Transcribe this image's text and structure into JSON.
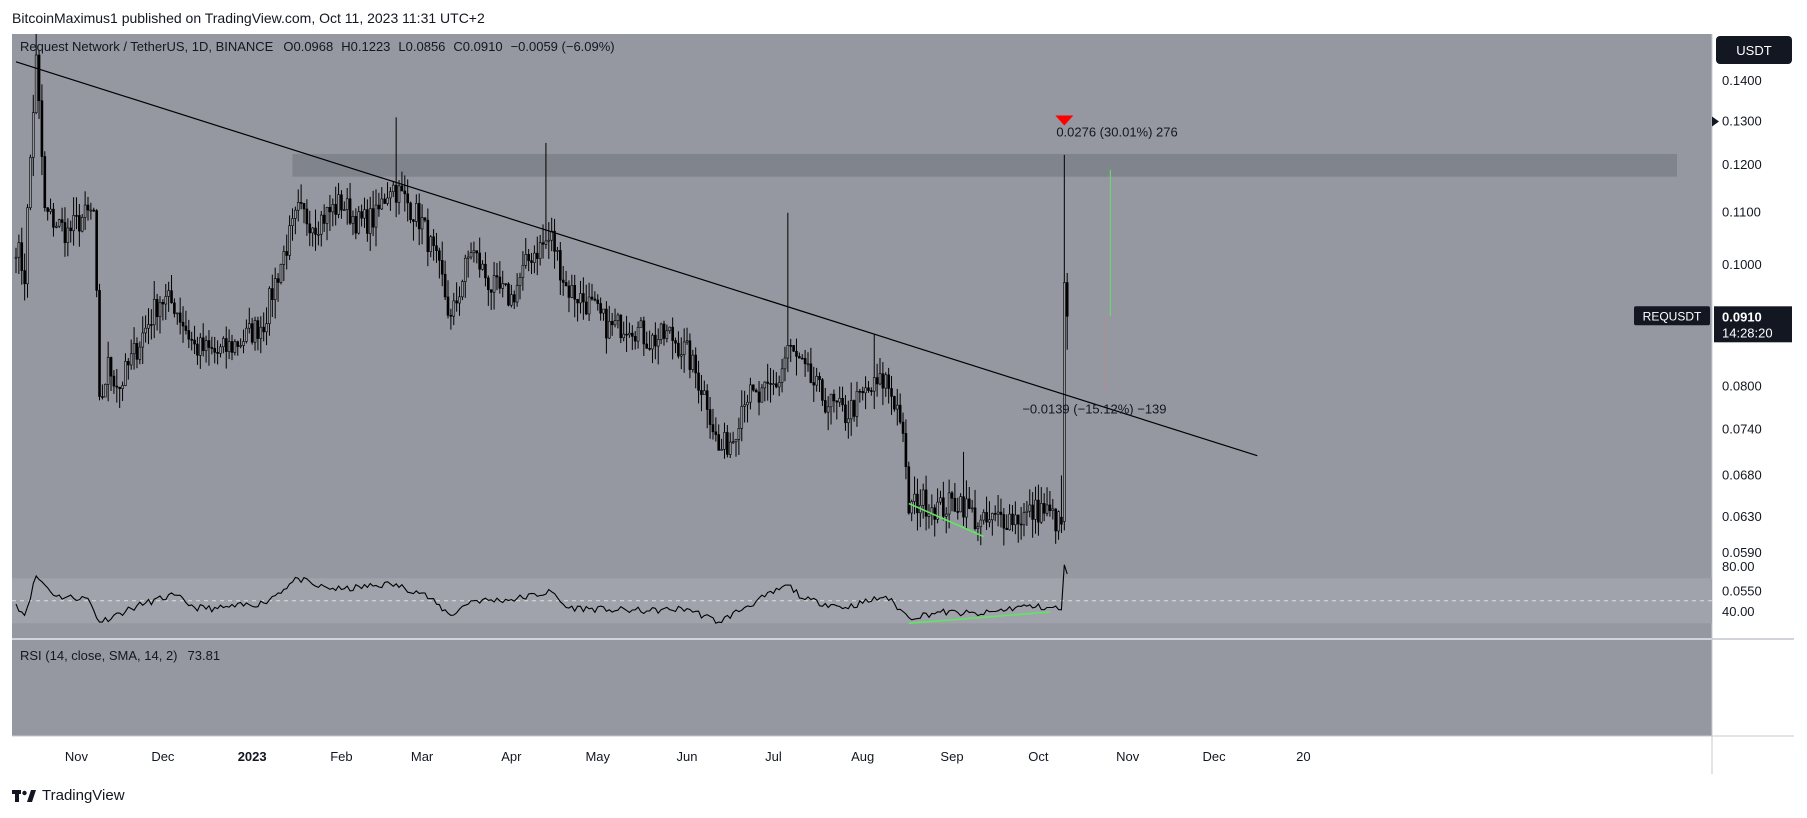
{
  "header": {
    "publisher_line": "BitcoinMaximus1 published on TradingView.com, Oct 11, 2023 11:31 UTC+2"
  },
  "footer": {
    "brand": "TradingView"
  },
  "colors": {
    "pane_bg": "#9598a1",
    "candle": "#000000",
    "trendline": "#000000",
    "resistance_zone": "#7d8089",
    "rsi_band": "#a0a3ab",
    "divergence": "#5ee85e",
    "marker_red": "#ff0000",
    "axis_bg": "#ffffff",
    "badge_bg": "#131722"
  },
  "chart_data": {
    "type": "candlestick",
    "symbol_line": {
      "name": "Request Network / TetherUS, 1D, BINANCE",
      "open_label": "O",
      "open": "0.0968",
      "high_label": "H",
      "high": "0.1223",
      "low_label": "L",
      "low": "0.0856",
      "close_label": "C",
      "close": "0.0910",
      "change": "−0.0059 (−6.09%)"
    },
    "currency": "USDT",
    "price_axis_ticks": [
      "0.1400",
      "0.1300",
      "0.1200",
      "0.1100",
      "0.1000",
      "0.0800",
      "0.0740",
      "0.0680",
      "0.0630",
      "0.0590",
      "0.0550"
    ],
    "time_axis_ticks": [
      "Nov",
      "Dec",
      "2023",
      "Feb",
      "Mar",
      "Apr",
      "May",
      "Jun",
      "Jul",
      "Aug",
      "Sep",
      "Oct",
      "Nov",
      "Dec",
      "20"
    ],
    "last_price": {
      "symbol": "REQUSDT",
      "price": "0.0910",
      "countdown": "14:28:20"
    },
    "annotations": {
      "up_measure": "0.0276 (30.01%) 276",
      "down_measure": "−0.0139 (−15.12%) −139"
    },
    "resistance_zone": [
      0.1175,
      0.1225
    ],
    "trendline": {
      "from": [
        "2022-10-11",
        0.145
      ],
      "to": [
        "2023-12-16",
        0.0705
      ]
    },
    "waypoints": [
      [
        "2022-10-11",
        0.104
      ],
      [
        "2022-10-14",
        0.098
      ],
      [
        "2022-10-18",
        0.145
      ],
      [
        "2022-10-21",
        0.11
      ],
      [
        "2022-10-25",
        0.108
      ],
      [
        "2022-10-29",
        0.106
      ],
      [
        "2022-11-03",
        0.109
      ],
      [
        "2022-11-07",
        0.11
      ],
      [
        "2022-11-09",
        0.077
      ],
      [
        "2022-11-12",
        0.083
      ],
      [
        "2022-11-16",
        0.08
      ],
      [
        "2022-11-23",
        0.087
      ],
      [
        "2022-11-30",
        0.094
      ],
      [
        "2022-12-05",
        0.093
      ],
      [
        "2022-12-12",
        0.086
      ],
      [
        "2022-12-20",
        0.085
      ],
      [
        "2022-12-28",
        0.087
      ],
      [
        "2023-01-05",
        0.09
      ],
      [
        "2023-01-12",
        0.102
      ],
      [
        "2023-01-17",
        0.11
      ],
      [
        "2023-01-23",
        0.108
      ],
      [
        "2023-02-01",
        0.112
      ],
      [
        "2023-02-07",
        0.108
      ],
      [
        "2023-02-13",
        0.109
      ],
      [
        "2023-02-18",
        0.116
      ],
      [
        "2023-02-24",
        0.112
      ],
      [
        "2023-03-01",
        0.108
      ],
      [
        "2023-03-08",
        0.097
      ],
      [
        "2023-03-11",
        0.09
      ],
      [
        "2023-03-18",
        0.103
      ],
      [
        "2023-03-25",
        0.096
      ],
      [
        "2023-04-01",
        0.094
      ],
      [
        "2023-04-08",
        0.102
      ],
      [
        "2023-04-15",
        0.105
      ],
      [
        "2023-04-20",
        0.096
      ],
      [
        "2023-04-28",
        0.093
      ],
      [
        "2023-05-05",
        0.089
      ],
      [
        "2023-05-12",
        0.09
      ],
      [
        "2023-05-19",
        0.087
      ],
      [
        "2023-05-26",
        0.088
      ],
      [
        "2023-06-01",
        0.085
      ],
      [
        "2023-06-08",
        0.078
      ],
      [
        "2023-06-12",
        0.071
      ],
      [
        "2023-06-17",
        0.073
      ],
      [
        "2023-06-21",
        0.079
      ],
      [
        "2023-06-26",
        0.078
      ],
      [
        "2023-07-03",
        0.081
      ],
      [
        "2023-07-06",
        0.086
      ],
      [
        "2023-07-12",
        0.082
      ],
      [
        "2023-07-19",
        0.078
      ],
      [
        "2023-07-26",
        0.076
      ],
      [
        "2023-08-02",
        0.079
      ],
      [
        "2023-08-09",
        0.081
      ],
      [
        "2023-08-14",
        0.076
      ],
      [
        "2023-08-17",
        0.064
      ],
      [
        "2023-08-21",
        0.065
      ],
      [
        "2023-08-28",
        0.064
      ],
      [
        "2023-09-04",
        0.065
      ],
      [
        "2023-09-11",
        0.062
      ],
      [
        "2023-09-18",
        0.063
      ],
      [
        "2023-09-25",
        0.063
      ],
      [
        "2023-10-02",
        0.064
      ],
      [
        "2023-10-06",
        0.063
      ],
      [
        "2023-10-09",
        0.062
      ],
      [
        "2023-10-10",
        0.0968
      ],
      [
        "2023-10-11",
        0.091
      ]
    ],
    "final_candles": [
      {
        "date": "2023-10-09",
        "open": 0.063,
        "high": 0.068,
        "low": 0.0612,
        "close": 0.0622
      },
      {
        "date": "2023-10-10",
        "open": 0.0625,
        "high": 0.1223,
        "low": 0.0615,
        "close": 0.0968
      },
      {
        "date": "2023-10-11",
        "open": 0.0968,
        "high": 0.0985,
        "low": 0.0856,
        "close": 0.091
      }
    ],
    "red_marker": {
      "date": "2023-10-10",
      "price": 0.13
    },
    "green_measure_bar": {
      "date": "2023-10-26",
      "from": 0.091,
      "to": 0.119
    },
    "faint_measure_bar": {
      "date": "2023-10-24",
      "from": 0.091,
      "to": 0.079
    },
    "price_divergence_line": {
      "from": [
        "2023-08-17",
        0.0646
      ],
      "to": [
        "2023-09-12",
        0.0608
      ]
    },
    "rsi": {
      "label": "RSI (14, close, SMA, 14, 2)",
      "value": "73.81",
      "axis_ticks": [
        "80.00",
        "40.00"
      ],
      "band": [
        30,
        70
      ],
      "mid": 50,
      "waypoints": [
        [
          "2022-10-11",
          47
        ],
        [
          "2022-10-14",
          37
        ],
        [
          "2022-10-18",
          72
        ],
        [
          "2022-10-25",
          54
        ],
        [
          "2022-11-05",
          52
        ],
        [
          "2022-11-09",
          31
        ],
        [
          "2022-11-16",
          39
        ],
        [
          "2022-11-25",
          48
        ],
        [
          "2022-12-05",
          55
        ],
        [
          "2022-12-12",
          44
        ],
        [
          "2022-12-20",
          43
        ],
        [
          "2023-01-05",
          48
        ],
        [
          "2023-01-17",
          70
        ],
        [
          "2023-01-23",
          63
        ],
        [
          "2023-02-01",
          60
        ],
        [
          "2023-02-18",
          65
        ],
        [
          "2023-03-01",
          57
        ],
        [
          "2023-03-11",
          37
        ],
        [
          "2023-03-18",
          50
        ],
        [
          "2023-04-01",
          51
        ],
        [
          "2023-04-15",
          58
        ],
        [
          "2023-04-20",
          44
        ],
        [
          "2023-05-05",
          42
        ],
        [
          "2023-05-19",
          41
        ],
        [
          "2023-06-01",
          43
        ],
        [
          "2023-06-12",
          31
        ],
        [
          "2023-06-21",
          44
        ],
        [
          "2023-07-06",
          64
        ],
        [
          "2023-07-12",
          51
        ],
        [
          "2023-07-26",
          44
        ],
        [
          "2023-08-09",
          54
        ],
        [
          "2023-08-17",
          35
        ],
        [
          "2023-08-28",
          40
        ],
        [
          "2023-09-11",
          38
        ],
        [
          "2023-09-25",
          45
        ],
        [
          "2023-10-06",
          44
        ],
        [
          "2023-10-09",
          42
        ],
        [
          "2023-10-10",
          82
        ],
        [
          "2023-10-11",
          73.81
        ]
      ],
      "divergence_line": {
        "from": [
          "2023-08-17",
          30
        ],
        "to": [
          "2023-10-05",
          40
        ]
      }
    }
  }
}
